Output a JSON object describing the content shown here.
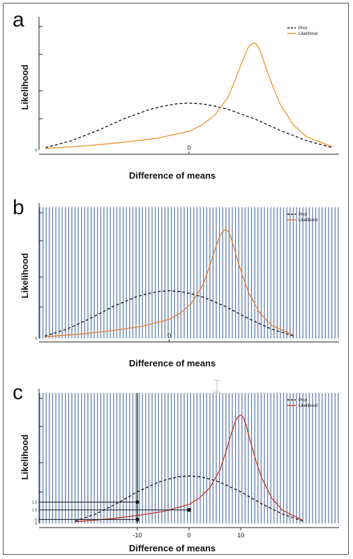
{
  "colors": {
    "prior": "#1a1a1a",
    "likelihood_a": "#f0922b",
    "likelihood_bc": "#e07b2c",
    "likelihood_c": "#c0392b",
    "stripe": "#3b5fa0",
    "background": "#ffffff"
  },
  "chart_data": [
    {
      "type": "line",
      "panel_label": "a",
      "xlabel": "Difference of means",
      "ylabel": "Likelihood",
      "x_ticks": [
        "0"
      ],
      "y_ticks": [
        "0"
      ],
      "xlim": [
        -23,
        23
      ],
      "ylim": [
        0,
        0.165
      ],
      "grid": false,
      "striped_background": false,
      "legend": {
        "placement": "top-right",
        "entries": [
          "Prior",
          "Likelihood"
        ]
      },
      "series": [
        {
          "name": "Prior",
          "style": "dashed",
          "x": [
            -22,
            -18,
            -14,
            -10,
            -6,
            -4,
            -2,
            0,
            2,
            4,
            6,
            10,
            14,
            18,
            22
          ],
          "y": [
            0.003,
            0.012,
            0.025,
            0.04,
            0.052,
            0.056,
            0.059,
            0.06,
            0.059,
            0.056,
            0.052,
            0.04,
            0.025,
            0.012,
            0.003
          ]
        },
        {
          "name": "Likelihood",
          "style": "solid",
          "x": [
            -22,
            -15,
            -10,
            -5,
            0,
            2,
            4,
            6,
            7,
            8,
            9,
            9.5,
            10,
            10.5,
            11,
            12,
            13,
            14,
            16,
            18,
            22
          ],
          "y": [
            0.002,
            0.006,
            0.01,
            0.015,
            0.024,
            0.032,
            0.045,
            0.068,
            0.088,
            0.11,
            0.13,
            0.135,
            0.137,
            0.134,
            0.125,
            0.1,
            0.078,
            0.058,
            0.032,
            0.017,
            0.004
          ]
        }
      ]
    },
    {
      "type": "line",
      "panel_label": "b",
      "xlabel": "Difference of means",
      "ylabel": "Likelihood",
      "x_ticks": [
        "0"
      ],
      "y_ticks": [
        "0"
      ],
      "xlim": [
        -23,
        30
      ],
      "ylim": [
        0,
        0.165
      ],
      "grid": false,
      "striped_background": true,
      "legend": {
        "placement": "top-right",
        "entries": [
          "Prior",
          "Likelihood"
        ]
      },
      "series": [
        {
          "name": "Prior",
          "style": "dashed",
          "x": [
            -22,
            -18,
            -14,
            -10,
            -6,
            -4,
            -2,
            0,
            2,
            4,
            6,
            10,
            14,
            18,
            22
          ],
          "y": [
            0.003,
            0.012,
            0.025,
            0.04,
            0.052,
            0.056,
            0.059,
            0.06,
            0.059,
            0.056,
            0.052,
            0.04,
            0.025,
            0.012,
            0.003
          ]
        },
        {
          "name": "Likelihood",
          "style": "solid",
          "x": [
            -22,
            -15,
            -10,
            -5,
            0,
            2,
            4,
            6,
            7,
            8,
            9,
            9.5,
            10,
            10.5,
            11,
            12,
            13,
            14,
            16,
            18,
            22
          ],
          "y": [
            0.002,
            0.006,
            0.01,
            0.015,
            0.024,
            0.032,
            0.045,
            0.068,
            0.088,
            0.11,
            0.13,
            0.135,
            0.137,
            0.134,
            0.125,
            0.1,
            0.078,
            0.058,
            0.032,
            0.017,
            0.004
          ]
        }
      ]
    },
    {
      "type": "line",
      "panel_label": "c",
      "xlabel": "Difference of means",
      "ylabel": "Likelihood",
      "x_ticks": [
        "-10",
        "0",
        "10"
      ],
      "y_ticks": [
        "1.5",
        "1.5",
        "5"
      ],
      "xlim": [
        -29,
        29
      ],
      "ylim": [
        0,
        0.165
      ],
      "grid": false,
      "striped_background": true,
      "legend": {
        "placement": "top-right",
        "entries": [
          "Prior",
          "Likelihood"
        ]
      },
      "series": [
        {
          "name": "Prior",
          "style": "dashed",
          "x": [
            -22,
            -18,
            -14,
            -10,
            -6,
            -4,
            -2,
            0,
            2,
            4,
            6,
            10,
            14,
            18,
            22
          ],
          "y": [
            0.003,
            0.012,
            0.025,
            0.04,
            0.052,
            0.056,
            0.059,
            0.06,
            0.059,
            0.056,
            0.052,
            0.04,
            0.025,
            0.012,
            0.003
          ]
        },
        {
          "name": "Likelihood",
          "style": "solid",
          "x": [
            -22,
            -15,
            -10,
            -5,
            0,
            2,
            4,
            6,
            7,
            8,
            9,
            9.5,
            10,
            10.5,
            11,
            12,
            13,
            14,
            16,
            18,
            22
          ],
          "y": [
            0.002,
            0.006,
            0.01,
            0.015,
            0.024,
            0.032,
            0.045,
            0.068,
            0.088,
            0.11,
            0.13,
            0.135,
            0.137,
            0.134,
            0.125,
            0.1,
            0.078,
            0.058,
            0.032,
            0.017,
            0.004
          ]
        }
      ],
      "annotations": [
        {
          "kind": "vertical-line",
          "x": -10
        },
        {
          "kind": "point",
          "x": -10,
          "y": 0.027
        },
        {
          "kind": "point",
          "x": -10,
          "y": 0.005
        },
        {
          "kind": "point",
          "x": 0,
          "y": 0.017
        },
        {
          "kind": "horizontal-line",
          "y": 0.027,
          "x_from": -29,
          "x_to": -10
        },
        {
          "kind": "horizontal-line",
          "y": 0.017,
          "x_from": -29,
          "x_to": 0
        },
        {
          "kind": "horizontal-line",
          "y": 0.005,
          "x_from": -29,
          "x_to": -10
        }
      ]
    }
  ]
}
